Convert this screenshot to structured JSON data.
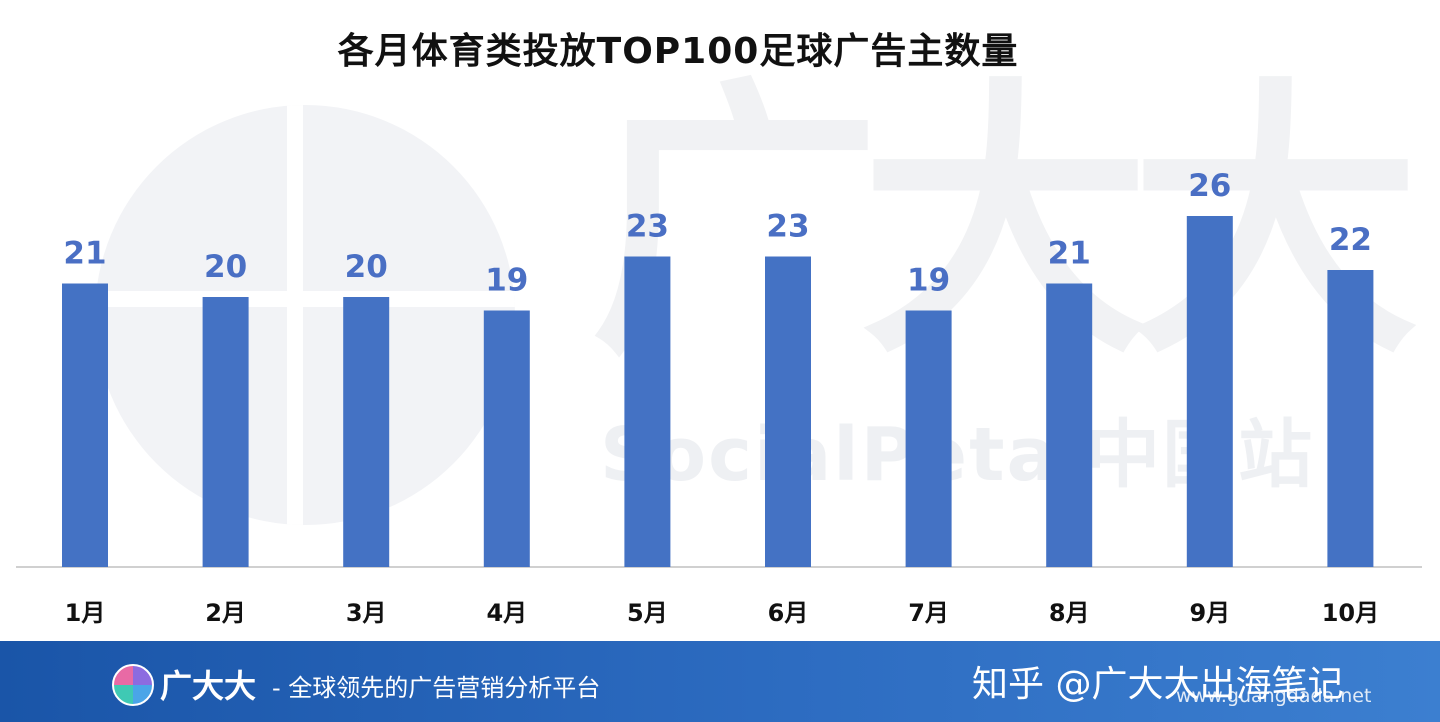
{
  "chart_data": {
    "type": "bar",
    "title": "各月体育类投放TOP100足球广告主数量",
    "categories": [
      "1月",
      "2月",
      "3月",
      "4月",
      "5月",
      "6月",
      "7月",
      "8月",
      "9月",
      "10月"
    ],
    "values": [
      21,
      20,
      20,
      19,
      23,
      23,
      19,
      21,
      26,
      22
    ],
    "xlabel": "",
    "ylabel": "",
    "ylim": [
      0,
      42
    ],
    "grid": false,
    "legend": "none",
    "bar_color": "#4472c4",
    "label_color": "#4a6fc4"
  },
  "watermark": {
    "logo_text": "广大大",
    "brand_text": "SocialPeta 中国站"
  },
  "footer": {
    "brand_name": "广大大",
    "slogan": "- 全球领先的广告营销分析平台",
    "platform_account": "知乎 @广大大出海笔记",
    "url": "www.guangdada.net"
  }
}
